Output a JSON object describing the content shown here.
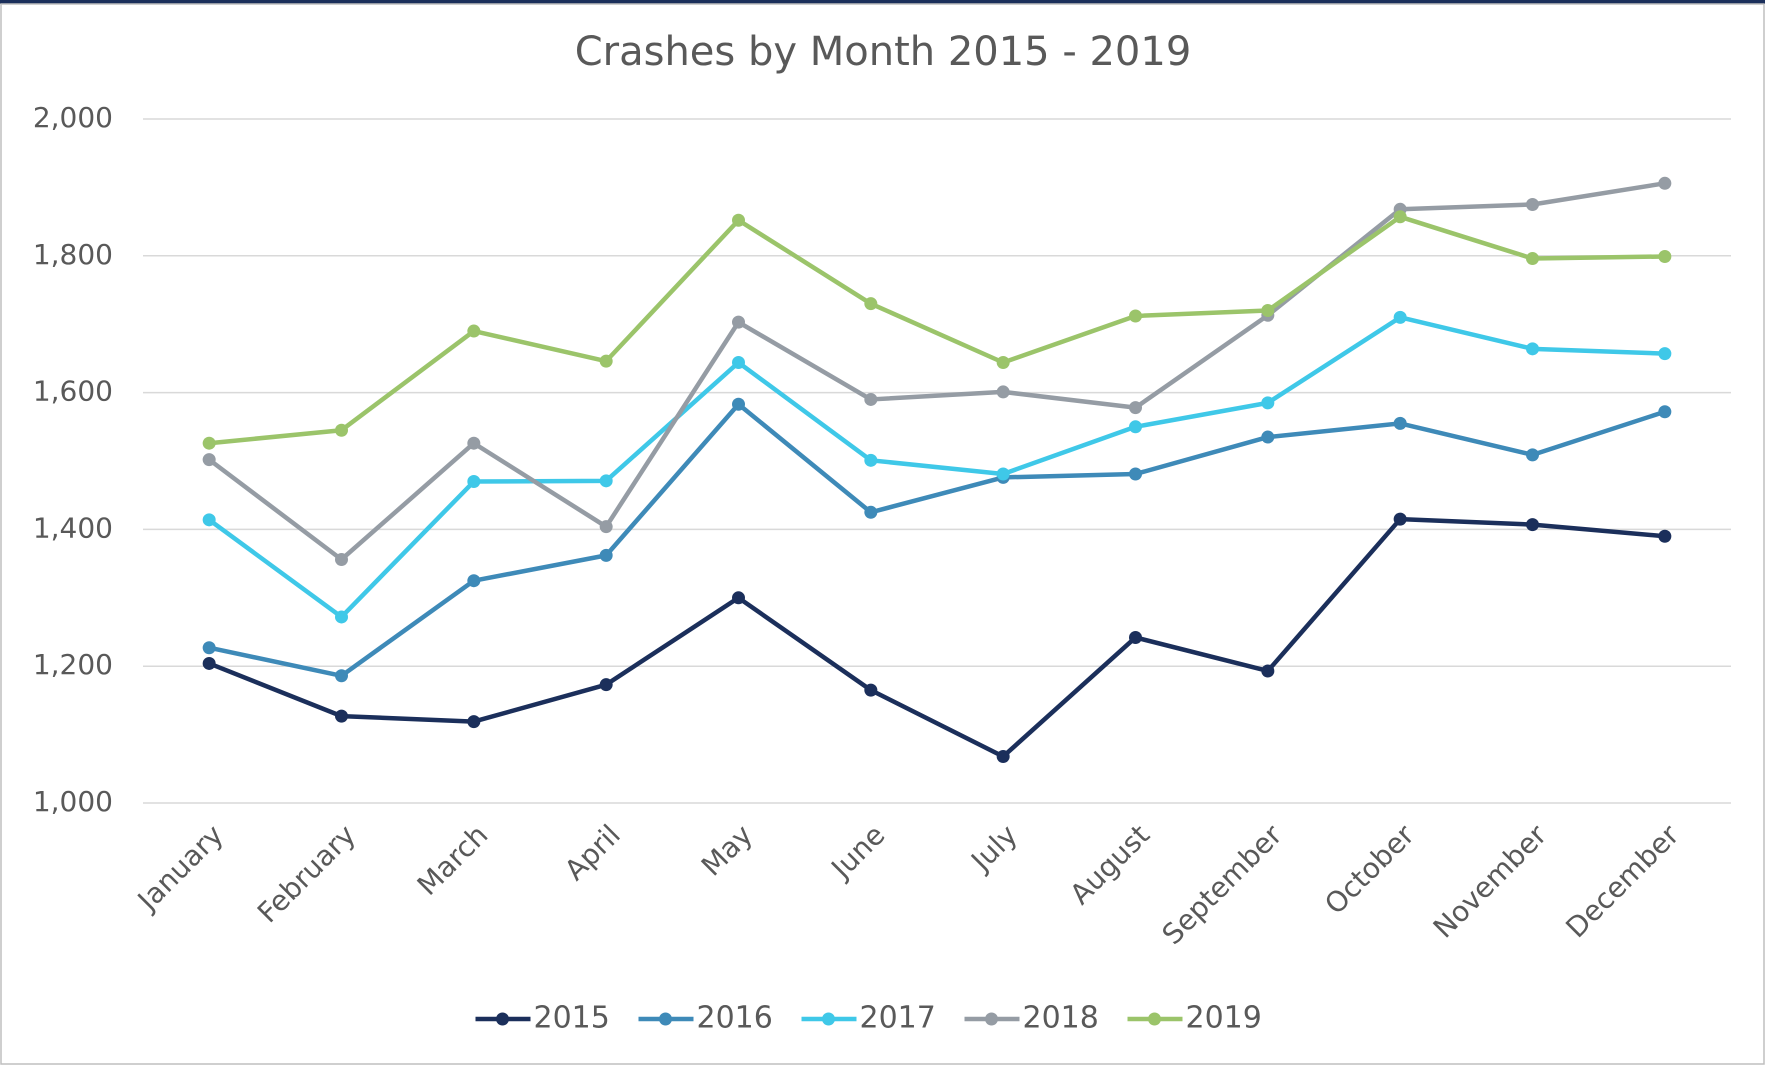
{
  "chart_data": {
    "type": "line",
    "title": "Crashes by Month 2015 - 2019",
    "categories": [
      "January",
      "February",
      "March",
      "April",
      "May",
      "June",
      "July",
      "August",
      "September",
      "October",
      "November",
      "December"
    ],
    "series": [
      {
        "name": "2015",
        "color": "#1b2f5b",
        "values": [
          1204,
          1127,
          1119,
          1173,
          1300,
          1165,
          1068,
          1242,
          1193,
          1415,
          1407,
          1390
        ]
      },
      {
        "name": "2016",
        "color": "#3e8ab8",
        "values": [
          1227,
          1186,
          1325,
          1362,
          1583,
          1425,
          1476,
          1481,
          1535,
          1555,
          1509,
          1572
        ]
      },
      {
        "name": "2017",
        "color": "#3fc8e8",
        "values": [
          1414,
          1272,
          1470,
          1471,
          1644,
          1501,
          1481,
          1550,
          1585,
          1710,
          1664,
          1657
        ]
      },
      {
        "name": "2018",
        "color": "#959ca4",
        "values": [
          1502,
          1356,
          1526,
          1404,
          1703,
          1590,
          1601,
          1578,
          1713,
          1868,
          1875,
          1906
        ]
      },
      {
        "name": "2019",
        "color": "#9bc46a",
        "values": [
          1526,
          1545,
          1690,
          1646,
          1852,
          1730,
          1644,
          1712,
          1720,
          1857,
          1796,
          1799
        ]
      }
    ],
    "ylim": [
      1000,
      2000
    ],
    "yticks": [
      {
        "value": 1000,
        "label": "1,000"
      },
      {
        "value": 1200,
        "label": "1,200"
      },
      {
        "value": 1400,
        "label": "1,400"
      },
      {
        "value": 1600,
        "label": "1,600"
      },
      {
        "value": 1800,
        "label": "1,800"
      },
      {
        "value": 2000,
        "label": "2,000"
      }
    ],
    "grid": true,
    "legend": "bottom"
  }
}
